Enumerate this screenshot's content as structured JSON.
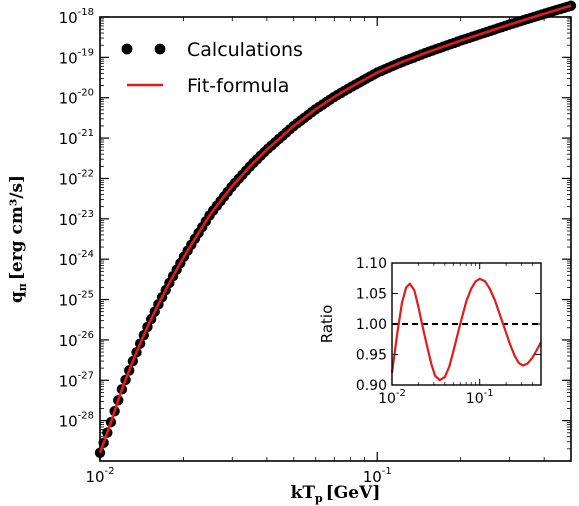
{
  "chart_data": [
    {
      "type": "scatter",
      "role": "main",
      "xscale": "log",
      "yscale": "log",
      "xlim": [
        0.01,
        0.5
      ],
      "ylim": [
        1e-29,
        1e-18
      ],
      "xlabel_main": "kT",
      "xlabel_sub": "p",
      "xlabel_unit": "[GeV]",
      "ylabel_main": "q",
      "ylabel_sub": "π",
      "ylabel_unit": "[erg cm³/s]",
      "x_ticks": [
        {
          "base": "10",
          "exp": "-2",
          "value": 0.01
        },
        {
          "base": "10",
          "exp": "-1",
          "value": 0.1
        }
      ],
      "y_ticks": [
        {
          "base": "10",
          "exp": "-28",
          "value": 1e-28
        },
        {
          "base": "10",
          "exp": "-27",
          "value": 1e-27
        },
        {
          "base": "10",
          "exp": "-26",
          "value": 1e-26
        },
        {
          "base": "10",
          "exp": "-25",
          "value": 1e-25
        },
        {
          "base": "10",
          "exp": "-24",
          "value": 1e-24
        },
        {
          "base": "10",
          "exp": "-23",
          "value": 1e-23
        },
        {
          "base": "10",
          "exp": "-22",
          "value": 1e-22
        },
        {
          "base": "10",
          "exp": "-21",
          "value": 1e-21
        },
        {
          "base": "10",
          "exp": "-20",
          "value": 1e-20
        },
        {
          "base": "10",
          "exp": "-19",
          "value": 1e-19
        },
        {
          "base": "10",
          "exp": "-18",
          "value": 1e-18
        }
      ],
      "legend": {
        "position": "top-left",
        "entries": [
          {
            "label": "Calculations",
            "marker": "dots",
            "color": "#000000"
          },
          {
            "label": "Fit-formula",
            "marker": "line",
            "color": "#e31a1c"
          }
        ]
      },
      "series": [
        {
          "name": "Calculations",
          "color": "#000000",
          "x": [
            0.01,
            0.0105,
            0.011,
            0.0115,
            0.012,
            0.013,
            0.014,
            0.015,
            0.016,
            0.018,
            0.02,
            0.022,
            0.025,
            0.03,
            0.035,
            0.04,
            0.05,
            0.06,
            0.07,
            0.08,
            0.1,
            0.12,
            0.15,
            0.2,
            0.25,
            0.3,
            0.4,
            0.5
          ],
          "y": [
            1.6e-29,
            4e-29,
            1e-28,
            2.5e-28,
            6e-28,
            2.5e-27,
            8.5e-27,
            2.5e-26,
            6.2e-26,
            3e-25,
            1.1e-24,
            3.2e-24,
            1.3e-23,
            6.5e-23,
            2.1e-22,
            5.2e-22,
            2e-21,
            5.2e-21,
            1.05e-20,
            1.8e-20,
            4.2e-20,
            7.2e-20,
            1.3e-19,
            2.6e-19,
            4.3e-19,
            6.5e-19,
            1.2e-18,
            1.9e-18
          ]
        },
        {
          "name": "Fit-formula",
          "color": "#e31a1c",
          "x": [
            0.01,
            0.0105,
            0.011,
            0.0115,
            0.012,
            0.013,
            0.014,
            0.015,
            0.016,
            0.018,
            0.02,
            0.022,
            0.025,
            0.03,
            0.035,
            0.04,
            0.05,
            0.06,
            0.07,
            0.08,
            0.1,
            0.12,
            0.15,
            0.2,
            0.25,
            0.3,
            0.4,
            0.5
          ],
          "y": [
            1.6e-29,
            4e-29,
            1e-28,
            2.5e-28,
            6e-28,
            2.5e-27,
            8.5e-27,
            2.5e-26,
            6.2e-26,
            3e-25,
            1.1e-24,
            3.2e-24,
            1.3e-23,
            6.5e-23,
            2.1e-22,
            5.2e-22,
            2e-21,
            5.2e-21,
            1.05e-20,
            1.8e-20,
            4.2e-20,
            7.2e-20,
            1.3e-19,
            2.6e-19,
            4.3e-19,
            6.5e-19,
            1.2e-18,
            1.9e-18
          ]
        }
      ]
    },
    {
      "type": "line",
      "role": "inset",
      "xscale": "log",
      "xlim": [
        0.01,
        0.5
      ],
      "ylim": [
        0.9,
        1.1
      ],
      "ylabel": "Ratio",
      "x_ticks": [
        {
          "base": "10",
          "exp": "-2",
          "value": 0.01
        },
        {
          "base": "10",
          "exp": "-1",
          "value": 0.1
        }
      ],
      "y_ticks": [
        "0.90",
        "0.95",
        "1.00",
        "1.05",
        "1.10"
      ],
      "reference_line": {
        "y": 1.0,
        "style": "dashed",
        "color": "#000000"
      },
      "series": [
        {
          "color": "#e31a1c",
          "x": [
            0.01,
            0.0115,
            0.013,
            0.0145,
            0.016,
            0.018,
            0.02,
            0.022,
            0.025,
            0.028,
            0.031,
            0.035,
            0.04,
            0.045,
            0.05,
            0.06,
            0.07,
            0.08,
            0.09,
            0.1,
            0.115,
            0.13,
            0.15,
            0.17,
            0.19,
            0.22,
            0.25,
            0.28,
            0.31,
            0.35,
            0.4,
            0.45,
            0.5
          ],
          "y": [
            0.92,
            0.985,
            1.035,
            1.06,
            1.066,
            1.055,
            1.028,
            1.0,
            0.965,
            0.935,
            0.915,
            0.908,
            0.913,
            0.93,
            0.955,
            1.0,
            1.036,
            1.058,
            1.07,
            1.074,
            1.07,
            1.058,
            1.038,
            1.015,
            0.995,
            0.968,
            0.948,
            0.936,
            0.932,
            0.935,
            0.945,
            0.958,
            0.97
          ]
        }
      ]
    }
  ]
}
